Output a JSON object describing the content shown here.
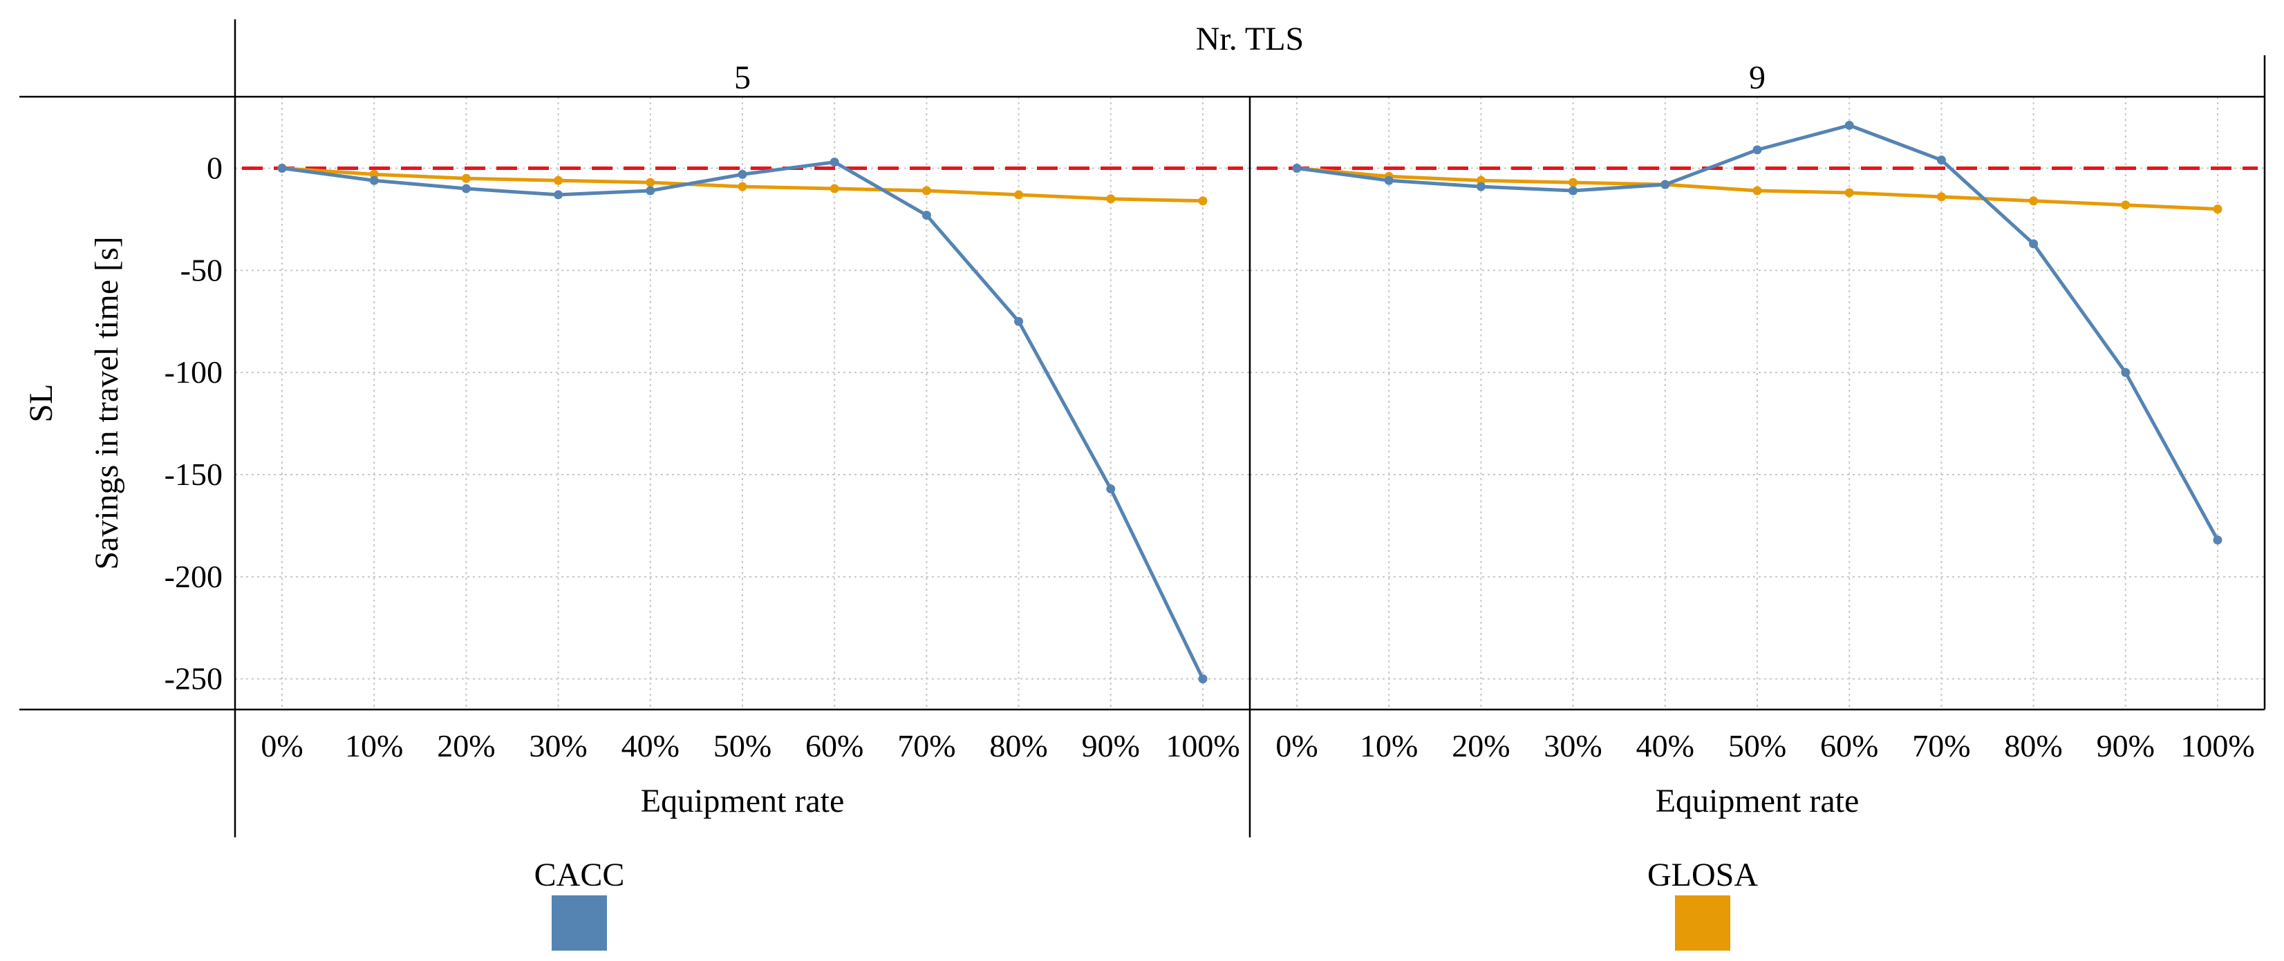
{
  "chart_data": {
    "type": "line",
    "facet_title": "Nr. TLS",
    "row_label": "SL",
    "xlabel": "Equipment rate",
    "ylabel": "Savings in travel time [s]",
    "categories": [
      "0%",
      "10%",
      "20%",
      "30%",
      "40%",
      "50%",
      "60%",
      "70%",
      "80%",
      "90%",
      "100%"
    ],
    "yticks": [
      0,
      -50,
      -100,
      -150,
      -200,
      -250
    ],
    "ylim": [
      -265,
      35
    ],
    "grid": true,
    "reference_line": {
      "value": 0,
      "color": "#e8141c",
      "style": "dashed"
    },
    "panels": [
      {
        "label": "5",
        "series": [
          {
            "name": "CACC",
            "values": [
              0,
              -6,
              -10,
              -13,
              -11,
              -3,
              3,
              -23,
              -75,
              -157,
              -250
            ]
          },
          {
            "name": "GLOSA",
            "values": [
              0,
              -3,
              -5,
              -6,
              -7,
              -9,
              -10,
              -11,
              -13,
              -15,
              -16
            ]
          }
        ]
      },
      {
        "label": "9",
        "series": [
          {
            "name": "CACC",
            "values": [
              0,
              -6,
              -9,
              -11,
              -8,
              9,
              21,
              4,
              -37,
              -100,
              -182
            ]
          },
          {
            "name": "GLOSA",
            "values": [
              0,
              -4,
              -6,
              -7,
              -8,
              -11,
              -12,
              -14,
              -16,
              -18,
              -20
            ]
          }
        ]
      }
    ],
    "legend": [
      {
        "name": "CACC",
        "color": "#5584b3"
      },
      {
        "name": "GLOSA",
        "color": "#e69a06"
      }
    ],
    "legend_position": "bottom"
  }
}
